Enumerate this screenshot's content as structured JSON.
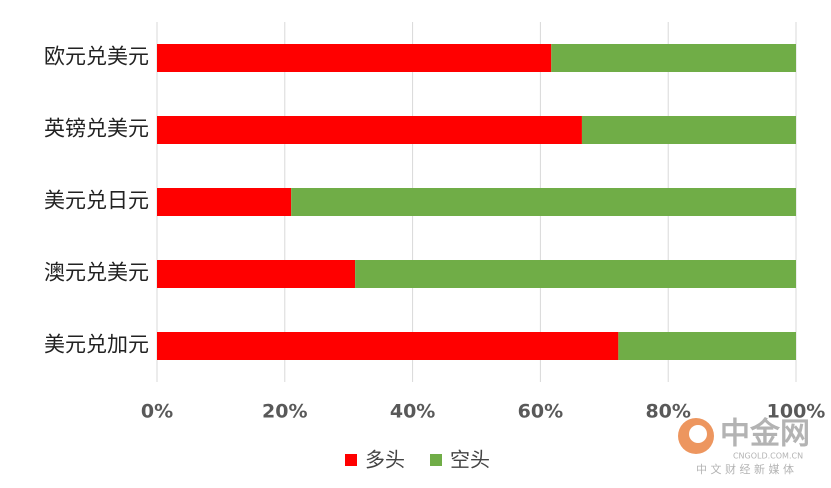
{
  "chart_data": {
    "type": "stacked-barh",
    "categories": [
      "欧元兑美元",
      "英镑兑美元",
      "美元兑日元",
      "澳元兑美元",
      "美元兑加元"
    ],
    "series": [
      {
        "name": "多头",
        "color": "#ff0000",
        "values": [
          61.7,
          66.5,
          21,
          31,
          72.2
        ]
      },
      {
        "name": "空头",
        "color": "#70ad47",
        "values": [
          38.3,
          33.5,
          79,
          69,
          27.8
        ]
      }
    ],
    "xlim": [
      0,
      100
    ],
    "xticks": [
      {
        "value": 0,
        "label": "0%"
      },
      {
        "value": 20,
        "label": "20%"
      },
      {
        "value": 40,
        "label": "40%"
      },
      {
        "value": 60,
        "label": "60%"
      },
      {
        "value": 80,
        "label": "80%"
      },
      {
        "value": 100,
        "label": "100%"
      }
    ],
    "grid": true,
    "legend": "bottom"
  },
  "watermark": {
    "brand": "中金网",
    "domain": "CNGOLD.COM.CN",
    "slogan": "中 文 财 经 新 媒 体"
  }
}
